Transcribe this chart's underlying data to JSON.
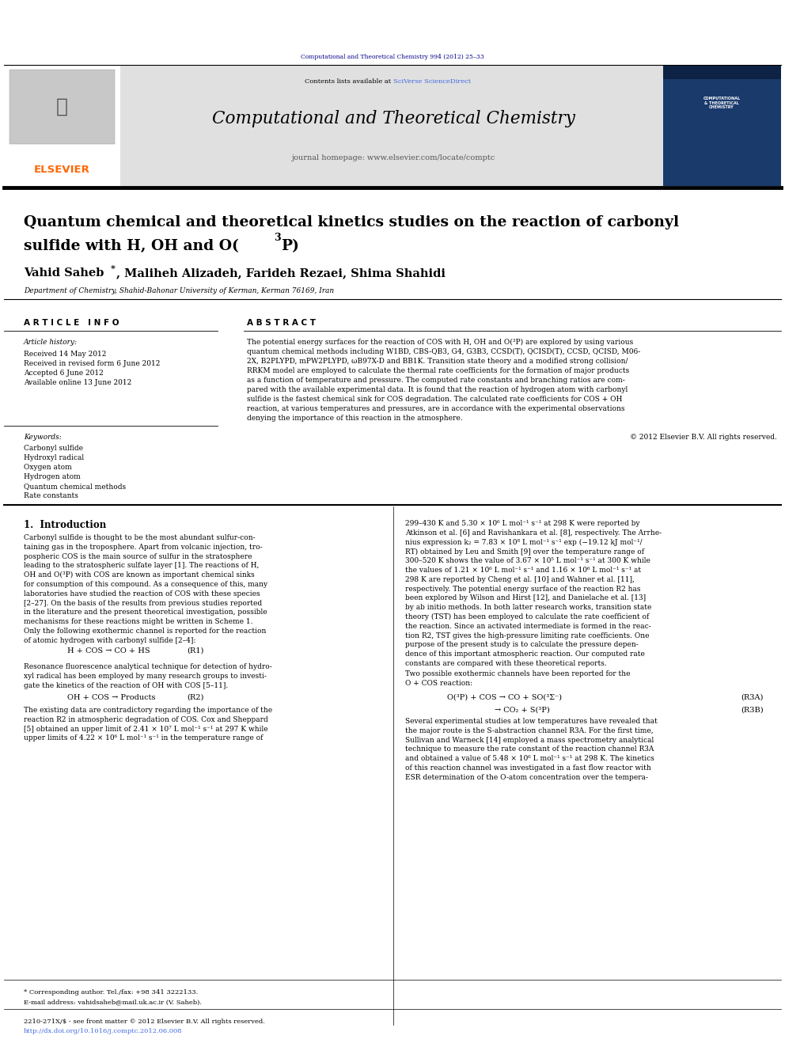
{
  "background_color": "#ffffff",
  "page_width": 9.92,
  "page_height": 13.23,
  "journal_ref": "Computational and Theoretical Chemistry 994 (2012) 25–33",
  "journal_ref_color": "#00008B",
  "header_bg": "#e8e8e8",
  "header_journal": "Computational and Theoretical Chemistry",
  "header_homepage": "journal homepage: www.elsevier.com/locate/comptc",
  "elsevier_color": "#FF6600",
  "sciverse_color": "#4169E1",
  "article_title_line1": "Quantum chemical and theoretical kinetics studies on the reaction of carbonyl",
  "article_title_line2a": "sulfide with H, OH and O(",
  "article_title_sup": "3",
  "article_title_line2b": "P)",
  "authors_part1": "Vahid Saheb",
  "authors_part2": ", Maliheh Alizadeh, Farideh Rezaei, Shima Shahidi",
  "affiliation": "Department of Chemistry, Shahid-Bahonar University of Kerman, Kerman 76169, Iran",
  "article_info_header": "A R T I C L E   I N F O",
  "abstract_header": "A B S T R A C T",
  "article_history_label": "Article history:",
  "received1": "Received 14 May 2012",
  "received_revised": "Received in revised form 6 June 2012",
  "accepted": "Accepted 6 June 2012",
  "available": "Available online 13 June 2012",
  "keywords_label": "Keywords:",
  "keywords": [
    "Carbonyl sulfide",
    "Hydroxyl radical",
    "Oxygen atom",
    "Hydrogen atom",
    "Quantum chemical methods",
    "Rate constants"
  ],
  "abstract_lines": [
    "The potential energy surfaces for the reaction of COS with H, OH and O(³P) are explored by using various",
    "quantum chemical methods including W1BD, CBS-QB3, G4, G3B3, CCSD(T), QCISD(T), CCSD, QCISD, M06-",
    "2X, B2PLYPD, mPW2PLYPD, ωB97X-D and BB1K. Transition state theory and a modified strong collision/",
    "RRKM model are employed to calculate the thermal rate coefficients for the formation of major products",
    "as a function of temperature and pressure. The computed rate constants and branching ratios are com-",
    "pared with the available experimental data. It is found that the reaction of hydrogen atom with carbonyl",
    "sulfide is the fastest chemical sink for COS degradation. The calculated rate coefficients for COS + OH",
    "reaction, at various temperatures and pressures, are in accordance with the experimental observations",
    "denying the importance of this reaction in the atmosphere."
  ],
  "copyright": "© 2012 Elsevier B.V. All rights reserved.",
  "intro_header": "1.  Introduction",
  "intro_lines1": [
    "Carbonyl sulfide is thought to be the most abundant sulfur-con-",
    "taining gas in the troposphere. Apart from volcanic injection, tro-",
    "pospheric COS is the main source of sulfur in the stratosphere",
    "leading to the stratospheric sulfate layer [1]. The reactions of H,",
    "OH and O(³P) with COS are known as important chemical sinks",
    "for consumption of this compound. As a consequence of this, many",
    "laboratories have studied the reaction of COS with these species",
    "[2–27]. On the basis of the results from previous studies reported",
    "in the literature and the present theoretical investigation, possible",
    "mechanisms for these reactions might be written in Scheme 1.",
    "Only the following exothermic channel is reported for the reaction",
    "of atomic hydrogen with carbonyl sulfide [2–4]:"
  ],
  "reaction_r1": "H + COS → CO + HS",
  "reaction_r1_label": "(R1)",
  "intro_lines2": [
    "Resonance fluorescence analytical technique for detection of hydro-",
    "xyl radical has been employed by many research groups to investi-",
    "gate the kinetics of the reaction of OH with COS [5–11]."
  ],
  "reaction_r2": "OH + COS → Products",
  "reaction_r2_label": "(R2)",
  "intro_lines3": [
    "The existing data are contradictory regarding the importance of the",
    "reaction R2 in atmospheric degradation of COS. Cox and Sheppard",
    "[5] obtained an upper limit of 2.41 × 10⁷ L mol⁻¹ s⁻¹ at 297 K while",
    "upper limits of 4.22 × 10⁶ L mol⁻¹ s⁻¹ in the temperature range of"
  ],
  "right_lines1": [
    "299–430 K and 5.30 × 10⁶ L mol⁻¹ s⁻¹ at 298 K were reported by",
    "Atkinson et al. [6] and Ravishankara et al. [8], respectively. The Arrhe-",
    "nius expression k₂ = 7.83 × 10⁸ L mol⁻¹ s⁻¹ exp (−19.12 kJ mol⁻¹/",
    "RT) obtained by Leu and Smith [9] over the temperature range of",
    "300–520 K shows the value of 3.67 × 10⁵ L mol⁻¹ s⁻¹ at 300 K while",
    "the values of 1.21 × 10⁶ L mol⁻¹ s⁻¹ and 1.16 × 10⁶ L mol⁻¹ s⁻¹ at",
    "298 K are reported by Cheng et al. [10] and Wahner et al. [11],",
    "respectively. The potential energy surface of the reaction R2 has",
    "been explored by Wilson and Hirst [12], and Danielache et al. [13]",
    "by ab initio methods. In both latter research works, transition state",
    "theory (TST) has been employed to calculate the rate coefficient of",
    "the reaction. Since an activated intermediate is formed in the reac-",
    "tion R2, TST gives the high-pressure limiting rate coefficients. One",
    "purpose of the present study is to calculate the pressure depen-",
    "dence of this important atmospheric reaction. Our computed rate",
    "constants are compared with these theoretical reports."
  ],
  "right_intro2a": "Two possible exothermic channels have been reported for the",
  "right_intro2b": "O + COS reaction:",
  "reaction_r3a": "O(³P) + COS → CO + SO(³Σ⁻)",
  "reaction_r3a_label": "(R3A)",
  "reaction_r3b": "→ CO₂ + S(³P)",
  "reaction_r3b_label": "(R3B)",
  "right_lines2": [
    "Several experimental studies at low temperatures have revealed that",
    "the major route is the S-abstraction channel R3A. For the first time,",
    "Sullivan and Warneck [14] employed a mass spectrometry analytical",
    "technique to measure the rate constant of the reaction channel R3A",
    "and obtained a value of 5.48 × 10⁶ L mol⁻¹ s⁻¹ at 298 K. The kinetics",
    "of this reaction channel was investigated in a fast flow reactor with",
    "ESR determination of the O-atom concentration over the tempera-"
  ],
  "footer_text1": "* Corresponding author. Tel./fax: +98 341 3222133.",
  "footer_text2": "E-mail address: vahidsaheb@mail.uk.ac.ir (V. Saheb).",
  "footer_text3": "2210-271X/$ - see front matter © 2012 Elsevier B.V. All rights reserved.",
  "footer_doi": "http://dx.doi.org/10.1016/j.comptc.2012.06.008"
}
